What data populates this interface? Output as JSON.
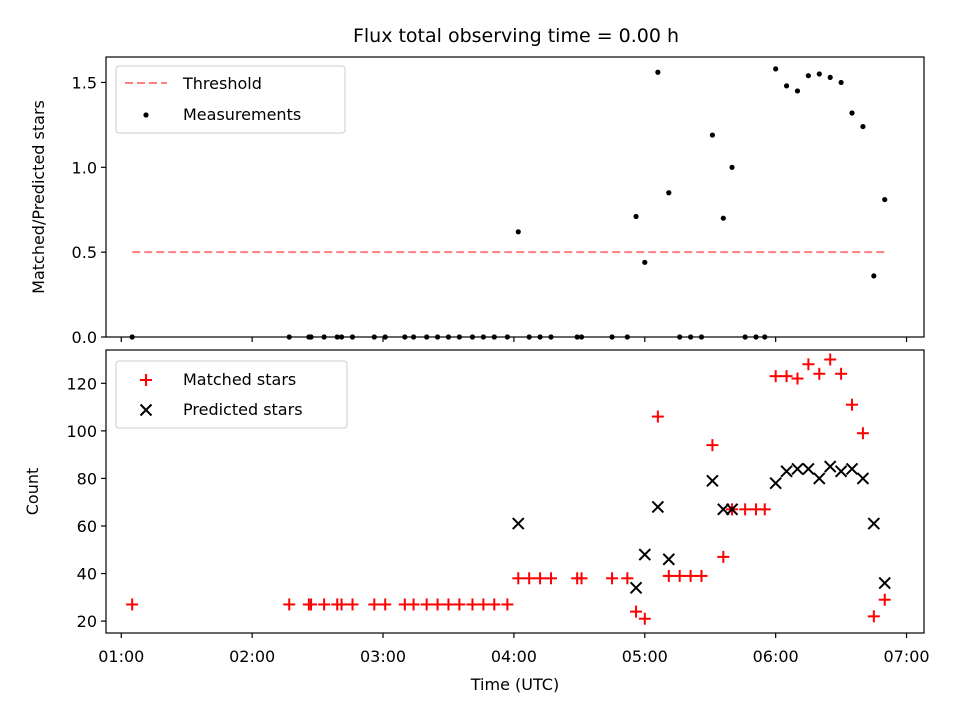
{
  "title": "Flux total observing time = 0.00 h",
  "colors": {
    "threshold": "#ff7f7f",
    "measurements": "#000000",
    "matched": "#ff0000",
    "predicted": "#000000"
  },
  "chart_data": [
    {
      "type": "scatter",
      "title": "Flux total observing time = 0.00 h",
      "xlabel": "",
      "ylabel": "Matched/Predicted stars",
      "xlim": [
        "00:53",
        "07:08"
      ],
      "ylim": [
        0,
        1.65
      ],
      "yticks": [
        0.0,
        0.5,
        1.0,
        1.5
      ],
      "ytick_labels": [
        "0.0",
        "0.5",
        "1.0",
        "1.5"
      ],
      "grid": false,
      "legend_position": "top-left",
      "threshold": {
        "name": "Threshold",
        "style": "dashed",
        "x_start": "01:05",
        "x_end": "06:50",
        "y": 0.5
      },
      "series": [
        {
          "name": "Measurements",
          "points": [
            [
              "01:05",
              0.0
            ],
            [
              "02:17",
              0.0
            ],
            [
              "02:26",
              0.0
            ],
            [
              "02:27",
              0.0
            ],
            [
              "02:33",
              0.0
            ],
            [
              "02:39",
              0.0
            ],
            [
              "02:41",
              0.0
            ],
            [
              "02:46",
              0.0
            ],
            [
              "02:56",
              0.0
            ],
            [
              "03:01",
              0.0
            ],
            [
              "03:10",
              0.0
            ],
            [
              "03:14",
              0.0
            ],
            [
              "03:20",
              0.0
            ],
            [
              "03:25",
              0.0
            ],
            [
              "03:30",
              0.0
            ],
            [
              "03:35",
              0.0
            ],
            [
              "03:41",
              0.0
            ],
            [
              "03:46",
              0.0
            ],
            [
              "03:51",
              0.0
            ],
            [
              "03:57",
              0.0
            ],
            [
              "04:02",
              0.62
            ],
            [
              "04:07",
              0.0
            ],
            [
              "04:12",
              0.0
            ],
            [
              "04:17",
              0.0
            ],
            [
              "04:29",
              0.0
            ],
            [
              "04:31",
              0.0
            ],
            [
              "04:45",
              0.0
            ],
            [
              "04:52",
              0.0
            ],
            [
              "04:56",
              0.71
            ],
            [
              "05:00",
              0.44
            ],
            [
              "05:06",
              1.56
            ],
            [
              "05:11",
              0.85
            ],
            [
              "05:16",
              0.0
            ],
            [
              "05:21",
              0.0
            ],
            [
              "05:26",
              0.0
            ],
            [
              "05:31",
              1.19
            ],
            [
              "05:36",
              0.7
            ],
            [
              "05:40",
              1.0
            ],
            [
              "05:46",
              0.0
            ],
            [
              "05:51",
              0.0
            ],
            [
              "05:55",
              0.0
            ],
            [
              "06:00",
              1.58
            ],
            [
              "06:05",
              1.48
            ],
            [
              "06:10",
              1.45
            ],
            [
              "06:15",
              1.54
            ],
            [
              "06:20",
              1.55
            ],
            [
              "06:25",
              1.53
            ],
            [
              "06:30",
              1.5
            ],
            [
              "06:35",
              1.32
            ],
            [
              "06:40",
              1.24
            ],
            [
              "06:45",
              0.36
            ],
            [
              "06:50",
              0.81
            ]
          ]
        }
      ]
    },
    {
      "type": "scatter",
      "title": "",
      "xlabel": "Time (UTC)",
      "ylabel": "Count",
      "xlim": [
        "00:53",
        "07:08"
      ],
      "ylim": [
        15,
        134
      ],
      "xticks": [
        "01:00",
        "02:00",
        "03:00",
        "04:00",
        "05:00",
        "06:00",
        "07:00"
      ],
      "yticks": [
        20,
        40,
        60,
        80,
        100,
        120
      ],
      "ytick_labels": [
        "20",
        "40",
        "60",
        "80",
        "100",
        "120"
      ],
      "grid": false,
      "legend_position": "top-left",
      "series": [
        {
          "name": "Matched stars",
          "marker": "+",
          "points": [
            [
              "01:05",
              27
            ],
            [
              "02:17",
              27
            ],
            [
              "02:26",
              27
            ],
            [
              "02:27",
              27
            ],
            [
              "02:33",
              27
            ],
            [
              "02:39",
              27
            ],
            [
              "02:41",
              27
            ],
            [
              "02:46",
              27
            ],
            [
              "02:56",
              27
            ],
            [
              "03:01",
              27
            ],
            [
              "03:10",
              27
            ],
            [
              "03:14",
              27
            ],
            [
              "03:20",
              27
            ],
            [
              "03:25",
              27
            ],
            [
              "03:30",
              27
            ],
            [
              "03:35",
              27
            ],
            [
              "03:41",
              27
            ],
            [
              "03:46",
              27
            ],
            [
              "03:51",
              27
            ],
            [
              "03:57",
              27
            ],
            [
              "04:02",
              38
            ],
            [
              "04:07",
              38
            ],
            [
              "04:12",
              38
            ],
            [
              "04:17",
              38
            ],
            [
              "04:29",
              38
            ],
            [
              "04:31",
              38
            ],
            [
              "04:45",
              38
            ],
            [
              "04:52",
              38
            ],
            [
              "04:56",
              24
            ],
            [
              "05:00",
              21
            ],
            [
              "05:06",
              106
            ],
            [
              "05:11",
              39
            ],
            [
              "05:16",
              39
            ],
            [
              "05:21",
              39
            ],
            [
              "05:26",
              39
            ],
            [
              "05:31",
              94
            ],
            [
              "05:36",
              47
            ],
            [
              "05:40",
              67
            ],
            [
              "05:46",
              67
            ],
            [
              "05:51",
              67
            ],
            [
              "05:55",
              67
            ],
            [
              "06:00",
              123
            ],
            [
              "06:05",
              123
            ],
            [
              "06:10",
              122
            ],
            [
              "06:15",
              128
            ],
            [
              "06:20",
              124
            ],
            [
              "06:25",
              130
            ],
            [
              "06:30",
              124
            ],
            [
              "06:35",
              111
            ],
            [
              "06:40",
              99
            ],
            [
              "06:45",
              22
            ],
            [
              "06:50",
              29
            ]
          ]
        },
        {
          "name": "Predicted stars",
          "marker": "x",
          "points": [
            [
              "04:02",
              61
            ],
            [
              "04:56",
              34
            ],
            [
              "05:00",
              48
            ],
            [
              "05:06",
              68
            ],
            [
              "05:11",
              46
            ],
            [
              "05:31",
              79
            ],
            [
              "05:36",
              67
            ],
            [
              "05:40",
              67
            ],
            [
              "06:00",
              78
            ],
            [
              "06:05",
              83
            ],
            [
              "06:10",
              84
            ],
            [
              "06:15",
              84
            ],
            [
              "06:20",
              80
            ],
            [
              "06:25",
              85
            ],
            [
              "06:30",
              83
            ],
            [
              "06:35",
              84
            ],
            [
              "06:40",
              80
            ],
            [
              "06:45",
              61
            ],
            [
              "06:50",
              36
            ]
          ]
        }
      ]
    }
  ]
}
